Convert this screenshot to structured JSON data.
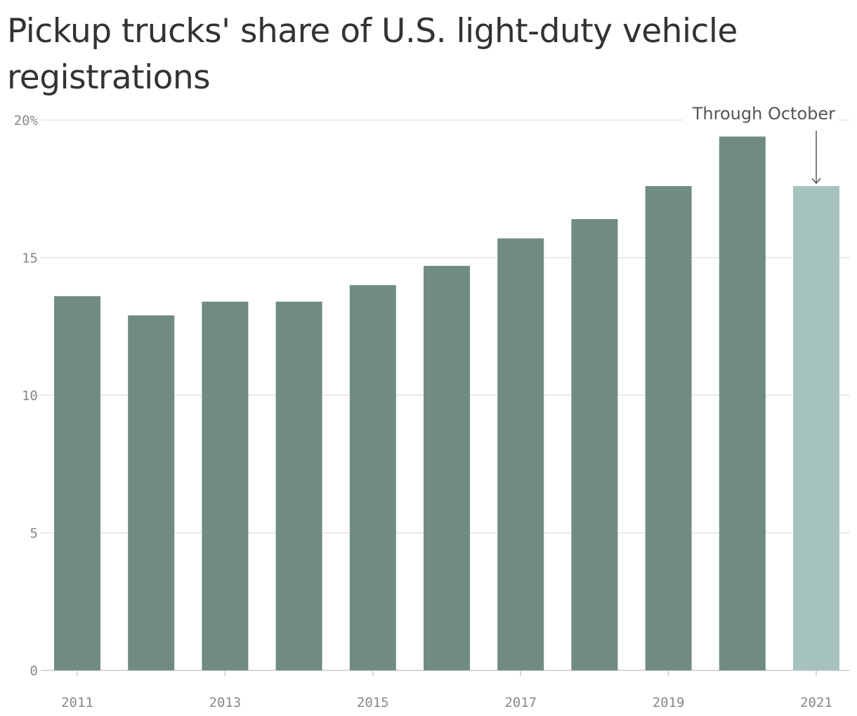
{
  "title": "Pickup trucks' share of U.S. light-duty vehicle registrations",
  "chart_data": {
    "type": "bar",
    "title": "Pickup trucks' share of U.S. light-duty vehicle registrations",
    "categories": [
      "2011",
      "2012",
      "2013",
      "2014",
      "2015",
      "2016",
      "2017",
      "2018",
      "2019",
      "2020",
      "2021"
    ],
    "values": [
      13.6,
      12.9,
      13.4,
      13.4,
      14.0,
      14.7,
      15.7,
      16.4,
      17.6,
      19.4,
      17.6
    ],
    "ylim": [
      0,
      20
    ],
    "y_ticks": [
      0,
      5,
      10,
      15,
      20
    ],
    "y_tick_labels": [
      "0",
      "5",
      "10",
      "15",
      "20%"
    ],
    "x_tick_labels": [
      "2011",
      "2013",
      "2015",
      "2017",
      "2019",
      "2021"
    ],
    "grid": true,
    "annotation": {
      "text": "Through October",
      "target_category": "2021"
    },
    "colors": {
      "bar": "#708b84",
      "highlight_bar": "#a5c3bc",
      "grid": "#e3e3e3",
      "axis": "#cccccc"
    },
    "highlight_categories": [
      "2021"
    ]
  }
}
